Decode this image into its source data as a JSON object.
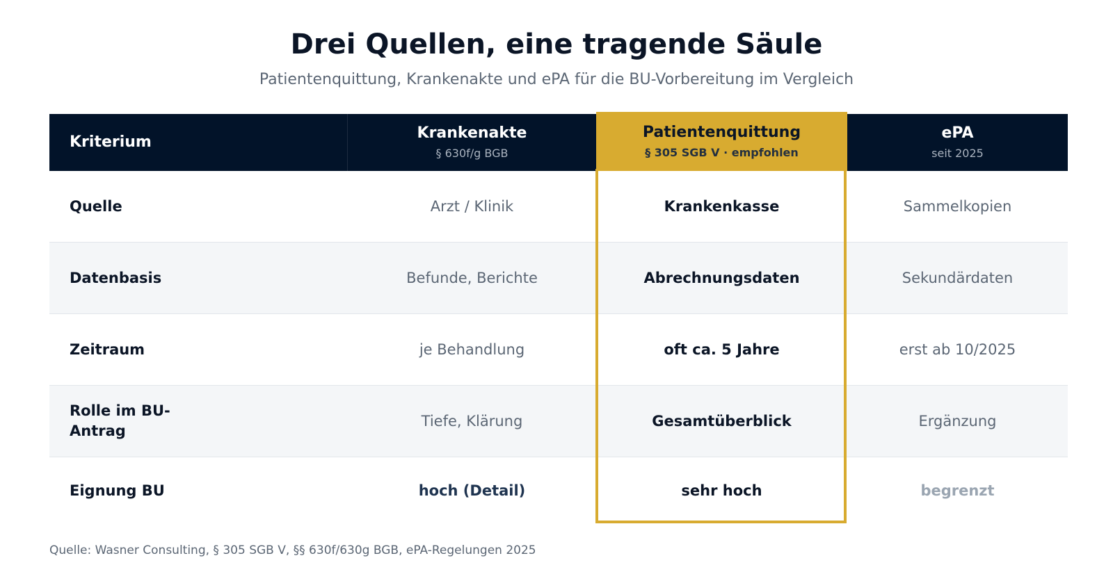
{
  "title": "Drei Quellen, eine tragende Säule",
  "subtitle": "Patientenquittung, Krankenakte und ePA für die BU-Vorbereitung im Vergleich",
  "table": {
    "header": {
      "criterion": "Kriterium",
      "columns": [
        {
          "title": "Krankenakte",
          "sub": "§ 630f/g BGB"
        },
        {
          "title": "Patientenquittung",
          "sub": "§ 305 SGB V · empfohlen"
        },
        {
          "title": "ePA",
          "sub": "seit 2025"
        }
      ]
    },
    "rows": [
      {
        "criterion": "Quelle",
        "values": [
          "Arzt / Klinik",
          "Krankenkasse",
          "Sammelkopien"
        ]
      },
      {
        "criterion": "Datenbasis",
        "values": [
          "Befunde, Berichte",
          "Abrechnungsdaten",
          "Sekundärdaten"
        ]
      },
      {
        "criterion": "Zeitraum",
        "values": [
          "je Behandlung",
          "oft ca. 5 Jahre",
          "erst ab 10/2025"
        ]
      },
      {
        "criterion": "Rolle im BU-Antrag",
        "values": [
          "Tiefe, Klärung",
          "Gesamtüberblick",
          "Ergänzung"
        ]
      },
      {
        "criterion": "Eignung BU",
        "values": [
          "hoch (Detail)",
          "sehr hoch",
          "begrenzt"
        ]
      }
    ]
  },
  "colors": {
    "header_bg": "#021329",
    "highlight": "#d8ab30",
    "alt_row": "#f4f6f8"
  },
  "source": "Quelle: Wasner Consulting, § 305 SGB V, §§ 630f/630g BGB, ePA-Regelungen 2025"
}
